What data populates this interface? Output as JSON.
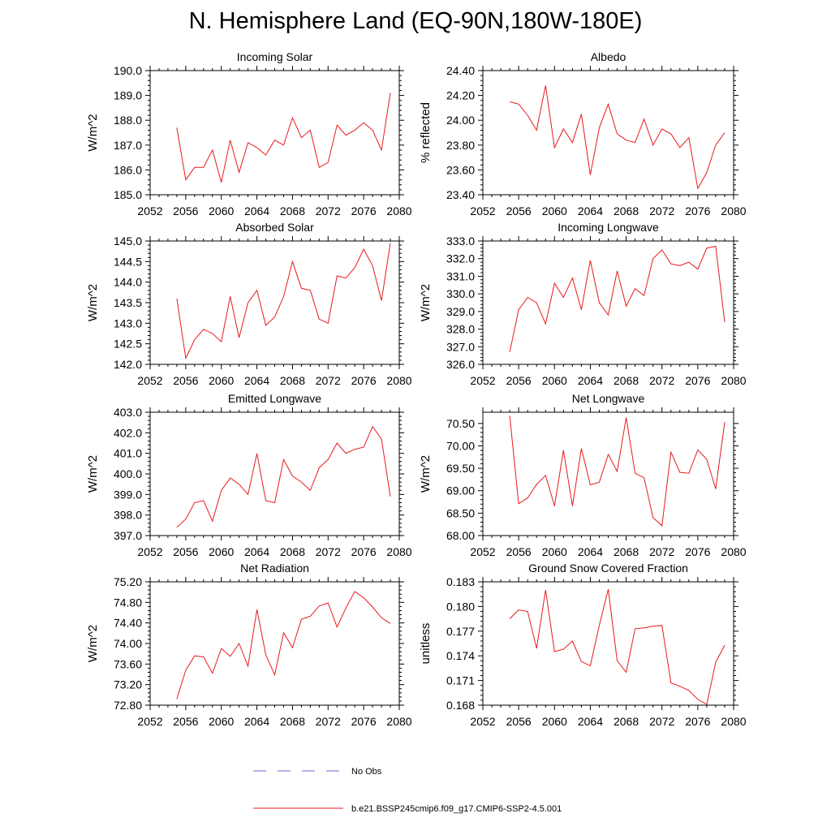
{
  "figure": {
    "title": "N. Hemisphere Land (EQ-90N,180W-180E)"
  },
  "legend": [
    {
      "label": "No Obs",
      "style": "dashed",
      "color": "#6a6acd"
    },
    {
      "label": "b.e21.BSSP245cmip6.f09_g17.CMIP6-SSP2-4.5.001",
      "style": "solid",
      "color": "#e8191c"
    }
  ],
  "chart_data": [
    {
      "type": "line",
      "title": "Incoming Solar",
      "xlabel": "",
      "ylabel": "W/m^2",
      "xlim": [
        2052,
        2080
      ],
      "ylim": [
        185.0,
        190.0
      ],
      "xticks": [
        2052,
        2056,
        2060,
        2064,
        2068,
        2072,
        2076,
        2080
      ],
      "xtick_labels": [
        "2052",
        "2056",
        "2060",
        "2064",
        "2068",
        "2072",
        "2076",
        "2080"
      ],
      "yticks": [
        185.0,
        186.0,
        187.0,
        188.0,
        189.0,
        190.0
      ],
      "ytick_labels": [
        "185.0",
        "186.0",
        "187.0",
        "188.0",
        "189.0",
        "190.0"
      ],
      "series": [
        {
          "color": "#e8191c",
          "x": [
            2055,
            2056,
            2057,
            2058,
            2059,
            2060,
            2061,
            2062,
            2063,
            2064,
            2065,
            2066,
            2067,
            2068,
            2069,
            2070,
            2071,
            2072,
            2073,
            2074,
            2075,
            2076,
            2077,
            2078,
            2079
          ],
          "y": [
            187.7,
            185.6,
            186.1,
            186.1,
            186.8,
            185.5,
            187.2,
            185.9,
            187.1,
            186.9,
            186.6,
            187.2,
            187.0,
            188.1,
            187.3,
            187.6,
            186.1,
            186.3,
            187.8,
            187.4,
            187.6,
            187.9,
            187.6,
            186.8,
            189.1
          ]
        }
      ]
    },
    {
      "type": "line",
      "title": "Albedo",
      "xlabel": "",
      "ylabel": "% reflected",
      "xlim": [
        2052,
        2080
      ],
      "ylim": [
        23.4,
        24.4
      ],
      "xticks": [
        2052,
        2056,
        2060,
        2064,
        2068,
        2072,
        2076,
        2080
      ],
      "xtick_labels": [
        "2052",
        "2056",
        "2060",
        "2064",
        "2068",
        "2072",
        "2076",
        "2080"
      ],
      "yticks": [
        23.4,
        23.6,
        23.8,
        24.0,
        24.2,
        24.4
      ],
      "ytick_labels": [
        "23.40",
        "23.60",
        "23.80",
        "24.00",
        "24.20",
        "24.40"
      ],
      "series": [
        {
          "color": "#e8191c",
          "x": [
            2055,
            2056,
            2057,
            2058,
            2059,
            2060,
            2061,
            2062,
            2063,
            2064,
            2065,
            2066,
            2067,
            2068,
            2069,
            2070,
            2071,
            2072,
            2073,
            2074,
            2075,
            2076,
            2077,
            2078,
            2079
          ],
          "y": [
            24.15,
            24.13,
            24.04,
            23.92,
            24.28,
            23.78,
            23.93,
            23.82,
            24.05,
            23.56,
            23.94,
            24.13,
            23.89,
            23.84,
            23.82,
            24.01,
            23.8,
            23.93,
            23.89,
            23.78,
            23.86,
            23.45,
            23.58,
            23.8,
            23.9
          ]
        }
      ]
    },
    {
      "type": "line",
      "title": "Absorbed Solar",
      "xlabel": "",
      "ylabel": "W/m^2",
      "xlim": [
        2052,
        2080
      ],
      "ylim": [
        142.0,
        145.0
      ],
      "xticks": [
        2052,
        2056,
        2060,
        2064,
        2068,
        2072,
        2076,
        2080
      ],
      "xtick_labels": [
        "2052",
        "2056",
        "2060",
        "2064",
        "2068",
        "2072",
        "2076",
        "2080"
      ],
      "yticks": [
        142.0,
        142.5,
        143.0,
        143.5,
        144.0,
        144.5,
        145.0
      ],
      "ytick_labels": [
        "142.0",
        "142.5",
        "143.0",
        "143.5",
        "144.0",
        "144.5",
        "145.0"
      ],
      "series": [
        {
          "color": "#e8191c",
          "x": [
            2055,
            2056,
            2057,
            2058,
            2059,
            2060,
            2061,
            2062,
            2063,
            2064,
            2065,
            2066,
            2067,
            2068,
            2069,
            2070,
            2071,
            2072,
            2073,
            2074,
            2075,
            2076,
            2077,
            2078,
            2079
          ],
          "y": [
            143.6,
            142.15,
            142.6,
            142.85,
            142.75,
            142.55,
            143.65,
            142.65,
            143.5,
            143.8,
            142.95,
            143.15,
            143.65,
            144.5,
            143.85,
            143.8,
            143.1,
            143.0,
            144.15,
            144.1,
            144.35,
            144.8,
            144.4,
            143.55,
            144.95
          ]
        }
      ]
    },
    {
      "type": "line",
      "title": "Incoming Longwave",
      "xlabel": "",
      "ylabel": "W/m^2",
      "xlim": [
        2052,
        2080
      ],
      "ylim": [
        326.0,
        333.0
      ],
      "xticks": [
        2052,
        2056,
        2060,
        2064,
        2068,
        2072,
        2076,
        2080
      ],
      "xtick_labels": [
        "2052",
        "2056",
        "2060",
        "2064",
        "2068",
        "2072",
        "2076",
        "2080"
      ],
      "yticks": [
        326.0,
        327.0,
        328.0,
        329.0,
        330.0,
        331.0,
        332.0,
        333.0
      ],
      "ytick_labels": [
        "326.0",
        "327.0",
        "328.0",
        "329.0",
        "330.0",
        "331.0",
        "332.0",
        "333.0"
      ],
      "series": [
        {
          "color": "#e8191c",
          "x": [
            2055,
            2056,
            2057,
            2058,
            2059,
            2060,
            2061,
            2062,
            2063,
            2064,
            2065,
            2066,
            2067,
            2068,
            2069,
            2070,
            2071,
            2072,
            2073,
            2074,
            2075,
            2076,
            2077,
            2078,
            2079
          ],
          "y": [
            326.7,
            329.1,
            329.8,
            329.5,
            328.3,
            330.6,
            329.8,
            330.9,
            329.1,
            331.9,
            329.5,
            328.8,
            331.3,
            329.3,
            330.3,
            329.9,
            332.0,
            332.5,
            331.7,
            331.6,
            331.8,
            331.4,
            332.6,
            332.7,
            328.4
          ]
        }
      ]
    },
    {
      "type": "line",
      "title": "Emitted Longwave",
      "xlabel": "",
      "ylabel": "W/m^2",
      "xlim": [
        2052,
        2080
      ],
      "ylim": [
        397.0,
        403.0
      ],
      "xticks": [
        2052,
        2056,
        2060,
        2064,
        2068,
        2072,
        2076,
        2080
      ],
      "xtick_labels": [
        "2052",
        "2056",
        "2060",
        "2064",
        "2068",
        "2072",
        "2076",
        "2080"
      ],
      "yticks": [
        397.0,
        398.0,
        399.0,
        400.0,
        401.0,
        402.0,
        403.0
      ],
      "ytick_labels": [
        "397.0",
        "398.0",
        "399.0",
        "400.0",
        "401.0",
        "402.0",
        "403.0"
      ],
      "series": [
        {
          "color": "#e8191c",
          "x": [
            2055,
            2056,
            2057,
            2058,
            2059,
            2060,
            2061,
            2062,
            2063,
            2064,
            2065,
            2066,
            2067,
            2068,
            2069,
            2070,
            2071,
            2072,
            2073,
            2074,
            2075,
            2076,
            2077,
            2078,
            2079
          ],
          "y": [
            397.4,
            397.8,
            398.6,
            398.7,
            397.7,
            399.2,
            399.8,
            399.5,
            399.0,
            401.0,
            398.7,
            398.6,
            400.7,
            399.9,
            399.6,
            399.2,
            400.3,
            400.7,
            401.5,
            401.0,
            401.2,
            401.3,
            402.3,
            401.7,
            398.9
          ]
        }
      ]
    },
    {
      "type": "line",
      "title": "Net Longwave",
      "xlabel": "",
      "ylabel": "W/m^2",
      "xlim": [
        2052,
        2080
      ],
      "ylim": [
        68.0,
        70.75
      ],
      "xticks": [
        2052,
        2056,
        2060,
        2064,
        2068,
        2072,
        2076,
        2080
      ],
      "xtick_labels": [
        "2052",
        "2056",
        "2060",
        "2064",
        "2068",
        "2072",
        "2076",
        "2080"
      ],
      "yticks": [
        68.0,
        68.5,
        69.0,
        69.5,
        70.0,
        70.5
      ],
      "ytick_labels": [
        "68.00",
        "68.50",
        "69.00",
        "69.50",
        "70.00",
        "70.50"
      ],
      "series": [
        {
          "color": "#e8191c",
          "x": [
            2055,
            2056,
            2057,
            2058,
            2059,
            2060,
            2061,
            2062,
            2063,
            2064,
            2065,
            2066,
            2067,
            2068,
            2069,
            2070,
            2071,
            2072,
            2073,
            2074,
            2075,
            2076,
            2077,
            2078,
            2079
          ],
          "y": [
            70.67,
            68.71,
            68.84,
            69.14,
            69.34,
            68.66,
            69.9,
            68.66,
            69.94,
            69.13,
            69.19,
            69.81,
            69.43,
            70.63,
            69.39,
            69.29,
            68.4,
            68.22,
            69.86,
            69.41,
            69.39,
            69.91,
            69.7,
            69.04,
            70.53
          ]
        }
      ]
    },
    {
      "type": "line",
      "title": "Net Radiation",
      "xlabel": "",
      "ylabel": "W/m^2",
      "xlim": [
        2052,
        2080
      ],
      "ylim": [
        72.8,
        75.2
      ],
      "xticks": [
        2052,
        2056,
        2060,
        2064,
        2068,
        2072,
        2076,
        2080
      ],
      "xtick_labels": [
        "2052",
        "2056",
        "2060",
        "2064",
        "2068",
        "2072",
        "2076",
        "2080"
      ],
      "yticks": [
        72.8,
        73.2,
        73.6,
        74.0,
        74.4,
        74.8,
        75.2
      ],
      "ytick_labels": [
        "72.80",
        "73.20",
        "73.60",
        "74.00",
        "74.40",
        "74.80",
        "75.20"
      ],
      "series": [
        {
          "color": "#e8191c",
          "x": [
            2055,
            2056,
            2057,
            2058,
            2059,
            2060,
            2061,
            2062,
            2063,
            2064,
            2065,
            2066,
            2067,
            2068,
            2069,
            2070,
            2071,
            2072,
            2073,
            2074,
            2075,
            2076,
            2077,
            2078,
            2079
          ],
          "y": [
            72.92,
            73.48,
            73.76,
            73.74,
            73.42,
            73.9,
            73.75,
            74.0,
            73.56,
            74.66,
            73.78,
            73.39,
            74.21,
            73.92,
            74.47,
            74.53,
            74.73,
            74.79,
            74.32,
            74.69,
            75.01,
            74.89,
            74.71,
            74.5,
            74.39
          ]
        }
      ]
    },
    {
      "type": "line",
      "title": "Ground Snow Covered Fraction",
      "xlabel": "",
      "ylabel": "unitless",
      "xlim": [
        2052,
        2080
      ],
      "ylim": [
        0.168,
        0.183
      ],
      "xticks": [
        2052,
        2056,
        2060,
        2064,
        2068,
        2072,
        2076,
        2080
      ],
      "xtick_labels": [
        "2052",
        "2056",
        "2060",
        "2064",
        "2068",
        "2072",
        "2076",
        "2080"
      ],
      "yticks": [
        0.168,
        0.171,
        0.174,
        0.177,
        0.18,
        0.183
      ],
      "ytick_labels": [
        "0.168",
        "0.171",
        "0.174",
        "0.177",
        "0.180",
        "0.183"
      ],
      "series": [
        {
          "color": "#e8191c",
          "x": [
            2055,
            2056,
            2057,
            2058,
            2059,
            2060,
            2061,
            2062,
            2063,
            2064,
            2065,
            2066,
            2067,
            2068,
            2069,
            2070,
            2071,
            2072,
            2073,
            2074,
            2075,
            2076,
            2077,
            2078,
            2079
          ],
          "y": [
            0.1785,
            0.1796,
            0.1794,
            0.1749,
            0.182,
            0.1745,
            0.1748,
            0.1758,
            0.1733,
            0.1728,
            0.1777,
            0.1821,
            0.1734,
            0.172,
            0.1773,
            0.1774,
            0.1776,
            0.1777,
            0.1707,
            0.1703,
            0.1698,
            0.1687,
            0.1681,
            0.1732,
            0.1753
          ]
        }
      ]
    }
  ]
}
